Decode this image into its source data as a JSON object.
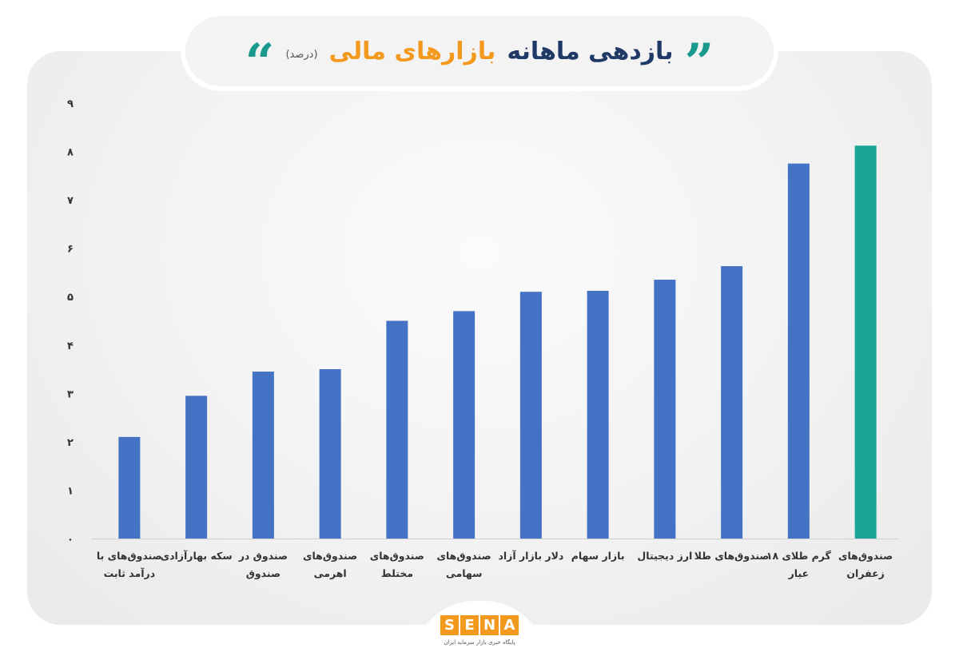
{
  "header": {
    "title_dark": "بازدهی ماهانه",
    "title_accent": "بازارهای مالی",
    "unit": "(درصد)",
    "open_quote": "“",
    "close_quote": "”"
  },
  "colors": {
    "title_dark": "#1f3866",
    "title_accent": "#f39a1e",
    "quote_left": "#1a9a8c",
    "quote_right": "#1a9a8c",
    "bar_default": "#4472c4",
    "bar_highlight": "#1aa596",
    "axis_text": "#333333"
  },
  "chart_data": {
    "type": "bar",
    "title": "بازدهی ماهانه بازارهای مالی (درصد)",
    "xlabel": "",
    "ylabel": "",
    "ylim": [
      0,
      9
    ],
    "yticks": [
      "۰",
      "۱",
      "۲",
      "۳",
      "۴",
      "۵",
      "۶",
      "۷",
      "۸",
      "۹"
    ],
    "grid": false,
    "categories": [
      [
        "صندوق‌های با",
        "درآمد ثابت"
      ],
      [
        "سکه بهارآزادی"
      ],
      [
        "صندوق در",
        "صندوق"
      ],
      [
        "صندوق‌های",
        "اهرمی"
      ],
      [
        "صندوق‌های",
        "مختلط"
      ],
      [
        "صندوق‌های",
        "سهامی"
      ],
      [
        "دلار بازار آزاد"
      ],
      [
        "بازار سهام"
      ],
      [
        "ارز دیجیتال"
      ],
      [
        "صندوق‌های طلا"
      ],
      [
        "گرم طلای ۱۸",
        "عیار"
      ],
      [
        "صندوق‌های",
        "زعفران"
      ]
    ],
    "values": [
      2.1,
      2.95,
      3.45,
      3.5,
      4.5,
      4.7,
      5.1,
      5.12,
      5.35,
      5.63,
      7.75,
      8.12
    ],
    "highlight_index": 11
  },
  "footer": {
    "logo_letters": [
      "S",
      "E",
      "N",
      "A"
    ],
    "tagline": "پایگاه خبری بازار سرمایه ایران"
  }
}
